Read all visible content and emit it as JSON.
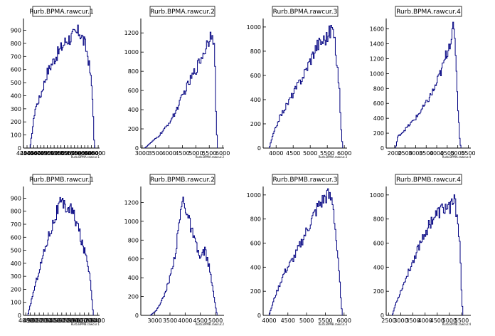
{
  "chart_data": [
    {
      "type": "histogram",
      "title": "Rurb.BPMA.rawcur.1",
      "xlabel": "Rurb.BPMA.rawcur.1",
      "xlim": [
        4195,
        6440
      ],
      "ylim": [
        0,
        990
      ],
      "xticks": [
        4200,
        4300,
        4400,
        4500,
        4600,
        4700,
        4800,
        4900,
        5000,
        5100,
        5200,
        5300,
        5400,
        5500,
        5600,
        5700,
        5800,
        5900,
        6000,
        6100,
        6200,
        6300,
        6400
      ],
      "xtick_labels": [
        "4200",
        "4300",
        "4400",
        "4500",
        "4600",
        "4700",
        "4800",
        "4900",
        "5000",
        "5100",
        "5200",
        "5300",
        "5400",
        "5500",
        "5600",
        "5700",
        "5800",
        "5900",
        "6000",
        "6100",
        "6200",
        "6300",
        "6400"
      ],
      "yticks": [
        0,
        100,
        200,
        300,
        400,
        500,
        600,
        700,
        800,
        900
      ],
      "keypoints": [
        [
          4390,
          0
        ],
        [
          4440,
          100
        ],
        [
          4540,
          300
        ],
        [
          4700,
          400
        ],
        [
          4900,
          580
        ],
        [
          5150,
          700
        ],
        [
          5450,
          820
        ],
        [
          5850,
          890
        ],
        [
          6000,
          800
        ],
        [
          6100,
          700
        ],
        [
          6200,
          500
        ],
        [
          6250,
          300
        ],
        [
          6270,
          100
        ],
        [
          6290,
          0
        ]
      ]
    },
    {
      "type": "histogram",
      "title": "Rurb.BPMA.rawcur.2",
      "xlabel": "Rurb.BPMA.rawcur.2",
      "xlim": [
        2950,
        6050
      ],
      "ylim": [
        0,
        1350
      ],
      "xticks": [
        3000,
        3500,
        4000,
        4500,
        5000,
        5500,
        6000
      ],
      "xtick_labels": [
        "3000",
        "3500",
        "4000",
        "4500",
        "5000",
        "5500",
        "6000"
      ],
      "yticks": [
        0,
        200,
        400,
        600,
        800,
        1000,
        1200
      ],
      "keypoints": [
        [
          3100,
          0
        ],
        [
          3300,
          50
        ],
        [
          3600,
          120
        ],
        [
          3900,
          220
        ],
        [
          4200,
          350
        ],
        [
          4600,
          600
        ],
        [
          5000,
          820
        ],
        [
          5300,
          1000
        ],
        [
          5500,
          1150
        ],
        [
          5620,
          1250
        ],
        [
          5700,
          1000
        ],
        [
          5750,
          400
        ],
        [
          5800,
          0
        ]
      ]
    },
    {
      "type": "histogram",
      "title": "Rurb.BPMA.rawcur.3",
      "xlabel": "Rurb.BPMA.rawcur.3",
      "xlim": [
        3620,
        6080
      ],
      "ylim": [
        0,
        1070
      ],
      "xticks": [
        4000,
        4500,
        5000,
        5500,
        6000
      ],
      "xtick_labels": [
        "4000",
        "4500",
        "5000",
        "5500",
        "6000"
      ],
      "yticks": [
        0,
        200,
        400,
        600,
        800,
        1000
      ],
      "keypoints": [
        [
          3800,
          0
        ],
        [
          3900,
          100
        ],
        [
          4100,
          250
        ],
        [
          4400,
          400
        ],
        [
          4800,
          600
        ],
        [
          5200,
          850
        ],
        [
          5500,
          920
        ],
        [
          5650,
          1000
        ],
        [
          5750,
          800
        ],
        [
          5850,
          500
        ],
        [
          5900,
          200
        ],
        [
          5950,
          0
        ]
      ]
    },
    {
      "type": "histogram",
      "title": "Rurb.BPMA.rawcur.4",
      "xlabel": "Rurb.BPMA.rawcur.4",
      "xlim": [
        1600,
        5620
      ],
      "ylim": [
        0,
        1740
      ],
      "xticks": [
        2000,
        2500,
        3000,
        3500,
        4000,
        4500,
        5000,
        5500
      ],
      "xtick_labels": [
        "2000",
        "2500",
        "3000",
        "3500",
        "4000",
        "4500",
        "5000",
        "5500"
      ],
      "yticks": [
        0,
        200,
        400,
        600,
        800,
        1000,
        1200,
        1400,
        1600
      ],
      "keypoints": [
        [
          2050,
          0
        ],
        [
          2150,
          150
        ],
        [
          2500,
          250
        ],
        [
          3000,
          400
        ],
        [
          3500,
          600
        ],
        [
          3900,
          800
        ],
        [
          4300,
          1100
        ],
        [
          4600,
          1400
        ],
        [
          4800,
          1600
        ],
        [
          4900,
          1300
        ],
        [
          5000,
          600
        ],
        [
          5100,
          100
        ],
        [
          5150,
          0
        ]
      ]
    },
    {
      "type": "histogram",
      "title": "Rurb.BPMB.rawcur.1",
      "xlabel": "Rurb.BPMB.rawcur.1",
      "xlim": [
        4750,
        6440
      ],
      "ylim": [
        0,
        990
      ],
      "xticks": [
        4800,
        4900,
        5000,
        5100,
        5200,
        5300,
        5400,
        5500,
        5600,
        5700,
        5800,
        5900,
        6000,
        6100,
        6200,
        6300,
        6400
      ],
      "xtick_labels": [
        "4800",
        "4900",
        "5000",
        "5100",
        "5200",
        "5300",
        "5400",
        "5500",
        "5600",
        "5700",
        "5800",
        "5900",
        "6000",
        "6100",
        "6200",
        "6300",
        "6400"
      ],
      "yticks": [
        0,
        100,
        200,
        300,
        400,
        500,
        600,
        700,
        800,
        900
      ],
      "keypoints": [
        [
          4850,
          0
        ],
        [
          4950,
          150
        ],
        [
          5100,
          350
        ],
        [
          5300,
          600
        ],
        [
          5550,
          850
        ],
        [
          5800,
          820
        ],
        [
          5950,
          700
        ],
        [
          6050,
          550
        ],
        [
          6150,
          450
        ],
        [
          6230,
          300
        ],
        [
          6280,
          100
        ],
        [
          6300,
          0
        ]
      ]
    },
    {
      "type": "histogram",
      "title": "Rurb.BPMB.rawcur.2",
      "xlabel": "Rurb.BPMB.rawcur.2",
      "xlim": [
        2540,
        5280
      ],
      "ylim": [
        0,
        1370
      ],
      "xticks": [
        3000,
        3500,
        4000,
        4500,
        5000
      ],
      "xtick_labels": [
        "3000",
        "3500",
        "4000",
        "4500",
        "5000"
      ],
      "yticks": [
        0,
        200,
        400,
        600,
        800,
        1000,
        1200
      ],
      "keypoints": [
        [
          2850,
          0
        ],
        [
          3050,
          50
        ],
        [
          3300,
          200
        ],
        [
          3500,
          400
        ],
        [
          3700,
          700
        ],
        [
          3850,
          1100
        ],
        [
          3950,
          1250
        ],
        [
          4050,
          1100
        ],
        [
          4300,
          800
        ],
        [
          4500,
          600
        ],
        [
          4650,
          700
        ],
        [
          4800,
          500
        ],
        [
          4950,
          200
        ],
        [
          5050,
          0
        ]
      ]
    },
    {
      "type": "histogram",
      "title": "Rurb.BPMB.rawcur.3",
      "xlabel": "Rurb.BPMB.rawcur.3",
      "xlim": [
        3840,
        6080
      ],
      "ylim": [
        0,
        1070
      ],
      "xticks": [
        4000,
        4500,
        5000,
        5500,
        6000
      ],
      "xtick_labels": [
        "4000",
        "4500",
        "5000",
        "5500",
        "6000"
      ],
      "yticks": [
        0,
        200,
        400,
        600,
        800,
        1000
      ],
      "keypoints": [
        [
          4000,
          0
        ],
        [
          4150,
          150
        ],
        [
          4400,
          350
        ],
        [
          4700,
          500
        ],
        [
          5000,
          700
        ],
        [
          5300,
          900
        ],
        [
          5550,
          1000
        ],
        [
          5700,
          950
        ],
        [
          5800,
          600
        ],
        [
          5880,
          300
        ],
        [
          5950,
          0
        ]
      ]
    },
    {
      "type": "histogram",
      "title": "Rurb.BPMB.rawcur.4",
      "xlabel": "Rurb.BPMB.rawcur.4",
      "xlim": [
        2400,
        5880
      ],
      "ylim": [
        0,
        1070
      ],
      "xticks": [
        2500,
        3000,
        3500,
        4000,
        4500,
        5000,
        5500
      ],
      "xtick_labels": [
        "2500",
        "3000",
        "3500",
        "4000",
        "4500",
        "5000",
        "5500"
      ],
      "yticks": [
        0,
        200,
        400,
        600,
        800,
        1000
      ],
      "keypoints": [
        [
          2650,
          0
        ],
        [
          2800,
          100
        ],
        [
          3100,
          250
        ],
        [
          3500,
          450
        ],
        [
          3900,
          650
        ],
        [
          4300,
          800
        ],
        [
          4700,
          880
        ],
        [
          5000,
          900
        ],
        [
          5200,
          950
        ],
        [
          5350,
          800
        ],
        [
          5450,
          500
        ],
        [
          5500,
          200
        ],
        [
          5550,
          0
        ]
      ]
    }
  ],
  "colors": {
    "line": "#000080",
    "axis": "#000000",
    "frame": "#000000",
    "background": "#ffffff"
  }
}
